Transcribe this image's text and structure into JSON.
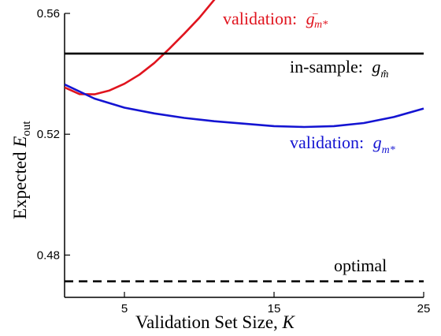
{
  "chart_data": {
    "type": "line",
    "xlabel": "Validation Set Size, K",
    "ylabel": "Expected E_out",
    "xlim": [
      1,
      25
    ],
    "ylim": [
      0.466,
      0.56
    ],
    "x_ticks": [
      "5",
      "15",
      "25"
    ],
    "y_ticks": [
      "0.56",
      "0.52",
      "0.48"
    ],
    "grid": false,
    "series": [
      {
        "name": "validation: g⁻_{m*}",
        "color": "#e0141e",
        "style": "solid",
        "x": [
          1,
          2,
          3,
          4,
          5,
          6,
          7,
          8,
          9,
          10,
          11,
          11.5
        ],
        "y": [
          0.5355,
          0.5333,
          0.5332,
          0.5345,
          0.5367,
          0.5397,
          0.5436,
          0.5483,
          0.5533,
          0.5585,
          0.5645,
          0.5675
        ]
      },
      {
        "name": "in-sample: g_{m̂}",
        "color": "#000000",
        "style": "solid",
        "x": [
          1,
          25
        ],
        "y": [
          0.5467,
          0.5467
        ]
      },
      {
        "name": "validation: g_{m*}",
        "color": "#1414d2",
        "style": "solid",
        "x": [
          1,
          3,
          5,
          7,
          9,
          11,
          13,
          15,
          17,
          19,
          21,
          23,
          25
        ],
        "y": [
          0.5365,
          0.5318,
          0.5288,
          0.5269,
          0.5254,
          0.5243,
          0.5235,
          0.5227,
          0.5224,
          0.5227,
          0.5237,
          0.5257,
          0.5285
        ]
      },
      {
        "name": "optimal",
        "color": "#000000",
        "style": "dashed",
        "x": [
          1,
          25
        ],
        "y": [
          0.4713,
          0.4713
        ]
      }
    ],
    "annotations": {
      "red": {
        "prefix": "validation: ",
        "var": "g",
        "sup": "−",
        "sub": "m*"
      },
      "black": {
        "prefix": "in-sample: ",
        "var": "g",
        "sub": "m̂"
      },
      "blue": {
        "prefix": "validation: ",
        "var": "g",
        "sub": "m*"
      },
      "optimal": "optimal"
    },
    "ylabel_parts": {
      "text": "Expected ",
      "var": "E",
      "sub": "out"
    },
    "xlabel_parts": {
      "text": "Validation Set Size, ",
      "var": "K"
    }
  }
}
